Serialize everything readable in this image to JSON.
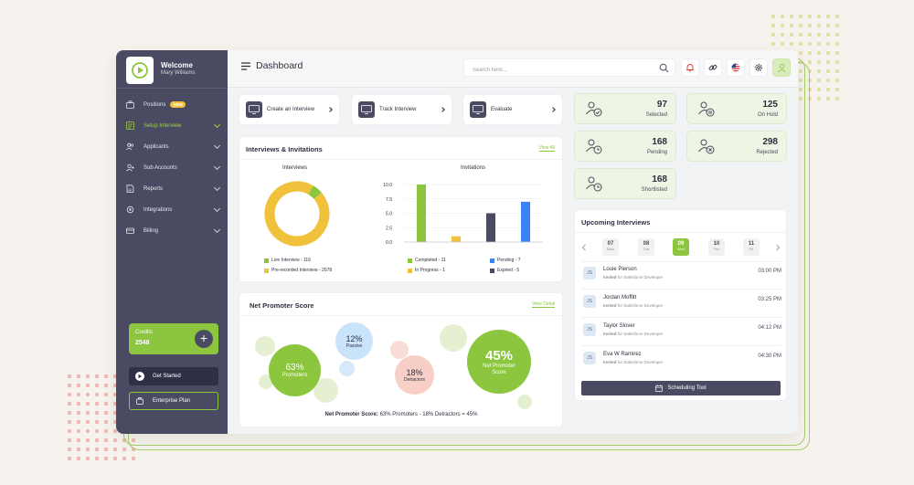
{
  "sidebar": {
    "welcome": "Welcome",
    "user_name": "Mary Williams",
    "items": [
      {
        "label": "Positions",
        "badge": "NEW",
        "icon": "briefcase-icon",
        "active": false
      },
      {
        "label": "Setup Interview",
        "icon": "setup-icon",
        "active": true
      },
      {
        "label": "Applicants",
        "icon": "users-icon",
        "active": false
      },
      {
        "label": "Sub Accounts",
        "icon": "user-add-icon",
        "active": false
      },
      {
        "label": "Reports",
        "icon": "report-icon",
        "active": false
      },
      {
        "label": "Integrations",
        "icon": "puzzle-icon",
        "active": false
      },
      {
        "label": "Billing",
        "icon": "billing-icon",
        "active": false
      }
    ],
    "credits_label": "Credits",
    "credits_value": "2548",
    "get_started": "Get Started",
    "enterprise_plan": "Enterprise Plan"
  },
  "header": {
    "title": "Dashboard",
    "search_placeholder": "Search here..."
  },
  "quick_actions": [
    {
      "label": "Create an Interview"
    },
    {
      "label": "Track Interview"
    },
    {
      "label": "Evaluate"
    }
  ],
  "stats": [
    {
      "value": "97",
      "label": "Selected"
    },
    {
      "value": "125",
      "label": "On Hold"
    },
    {
      "value": "168",
      "label": "Pending"
    },
    {
      "value": "298",
      "label": "Rejected"
    },
    {
      "value": "168",
      "label": "Shortlisted"
    }
  ],
  "interviews_card": {
    "title": "Interviews & Invitations",
    "view_all": "View All",
    "donut_title": "Interviews",
    "bar_title": "Invitations",
    "donut_legend": [
      {
        "label": "Live Interview - 116",
        "color": "#8cc63f"
      },
      {
        "label": "Pre-recorded Interview - 2078",
        "color": "#f0c23b"
      }
    ],
    "bar_legend": [
      {
        "label": "Completed - 11",
        "color": "#8cc63f"
      },
      {
        "label": "Pending - 7",
        "color": "#3b82f6"
      },
      {
        "label": "In Progress - 1",
        "color": "#f0c23b"
      },
      {
        "label": "Expired - 5",
        "color": "#4a4b63"
      }
    ]
  },
  "chart_data": [
    {
      "type": "pie",
      "title": "Interviews",
      "categories": [
        "Live Interview",
        "Pre-recorded Interview"
      ],
      "values": [
        116,
        2078
      ],
      "colors": [
        "#8cc63f",
        "#f0c23b"
      ]
    },
    {
      "type": "bar",
      "title": "Invitations",
      "categories": [
        "Completed",
        "In Progress",
        "Expired",
        "Pending"
      ],
      "values": [
        11,
        1,
        5,
        7
      ],
      "colors": [
        "#8cc63f",
        "#f0c23b",
        "#4a4b63",
        "#3b82f6"
      ],
      "yticks": [
        "0.0",
        "2.5",
        "5.0",
        "7.5",
        "10.0"
      ],
      "ylim": [
        0,
        10
      ]
    }
  ],
  "nps": {
    "title": "Net Promoter Score",
    "view_detail": "View Detail",
    "promoters_pct": "63%",
    "promoters_label": "Promoters",
    "passive_pct": "12%",
    "passive_label": "Passive",
    "detractors_pct": "18%",
    "detractors_label": "Detractors",
    "score_pct": "45%",
    "score_label": "Net Promoter Score",
    "footer_label": "Net Promoter Score:",
    "footer_formula": "63% Promoters - 18% Detractors = 45%"
  },
  "upcoming": {
    "title": "Upcoming Interviews",
    "dates": [
      {
        "day": "07",
        "weekday": "Mon",
        "selected": false
      },
      {
        "day": "08",
        "weekday": "Tue",
        "selected": false
      },
      {
        "day": "09",
        "weekday": "Wed",
        "selected": true
      },
      {
        "day": "10",
        "weekday": "Thu",
        "selected": false
      },
      {
        "day": "11",
        "weekday": "Fri",
        "selected": false
      }
    ],
    "items": [
      {
        "initials": "JS",
        "name": "Louie Pierson",
        "invited": "Invited",
        "role": " for Salesforce Developer",
        "time": "03:00 PM"
      },
      {
        "initials": "JS",
        "name": "Jordan Moffitt",
        "invited": "Invited",
        "role": " for Salesforce Developer",
        "time": "03:25 PM"
      },
      {
        "initials": "JS",
        "name": "Taylor Slover",
        "invited": "Invited",
        "role": " for Salesforce Developer",
        "time": "04:12 PM"
      },
      {
        "initials": "JS",
        "name": "Eva W Ramirez",
        "invited": "Invited",
        "role": " for Salesforce Developer",
        "time": "04:30 PM"
      }
    ],
    "scheduling_tool": "Scheduling Tool"
  }
}
